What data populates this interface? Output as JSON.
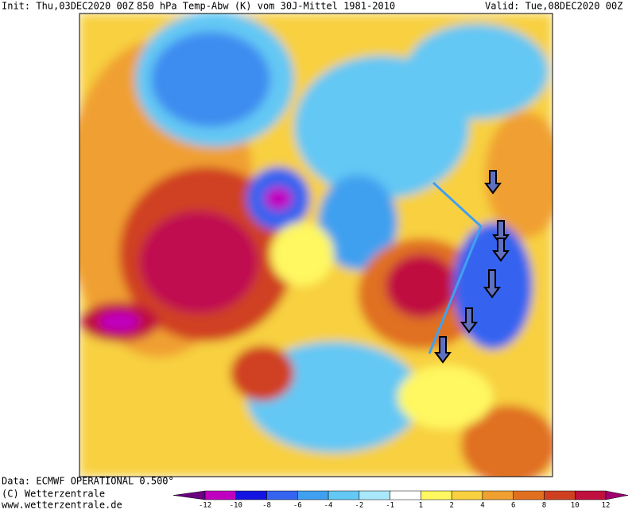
{
  "header": {
    "init": "Init: Thu,03DEC2020 00Z",
    "title": "850 hPa Temp-Abw (K) vom 30J-Mittel 1981-2010",
    "valid": "Valid: Tue,08DEC2020 00Z"
  },
  "footer": {
    "source": "Data: ECMWF OPERATIONAL 0.500°",
    "copyright": "(C) Wetterzentrale",
    "url": "www.wetterzentrale.de"
  },
  "colorbar": {
    "ticks": [
      -12,
      -10,
      -8,
      -6,
      -4,
      -2,
      -1,
      1,
      2,
      4,
      6,
      8,
      10,
      12
    ],
    "colors": [
      "#6a0080",
      "#c000c0",
      "#1414e0",
      "#3464f0",
      "#40a0f0",
      "#64c8f4",
      "#a8e8fa",
      "#ffffff",
      "#fff860",
      "#f8d040",
      "#f0a030",
      "#e07020",
      "#d04020",
      "#c01040",
      "#a00070"
    ]
  }
}
